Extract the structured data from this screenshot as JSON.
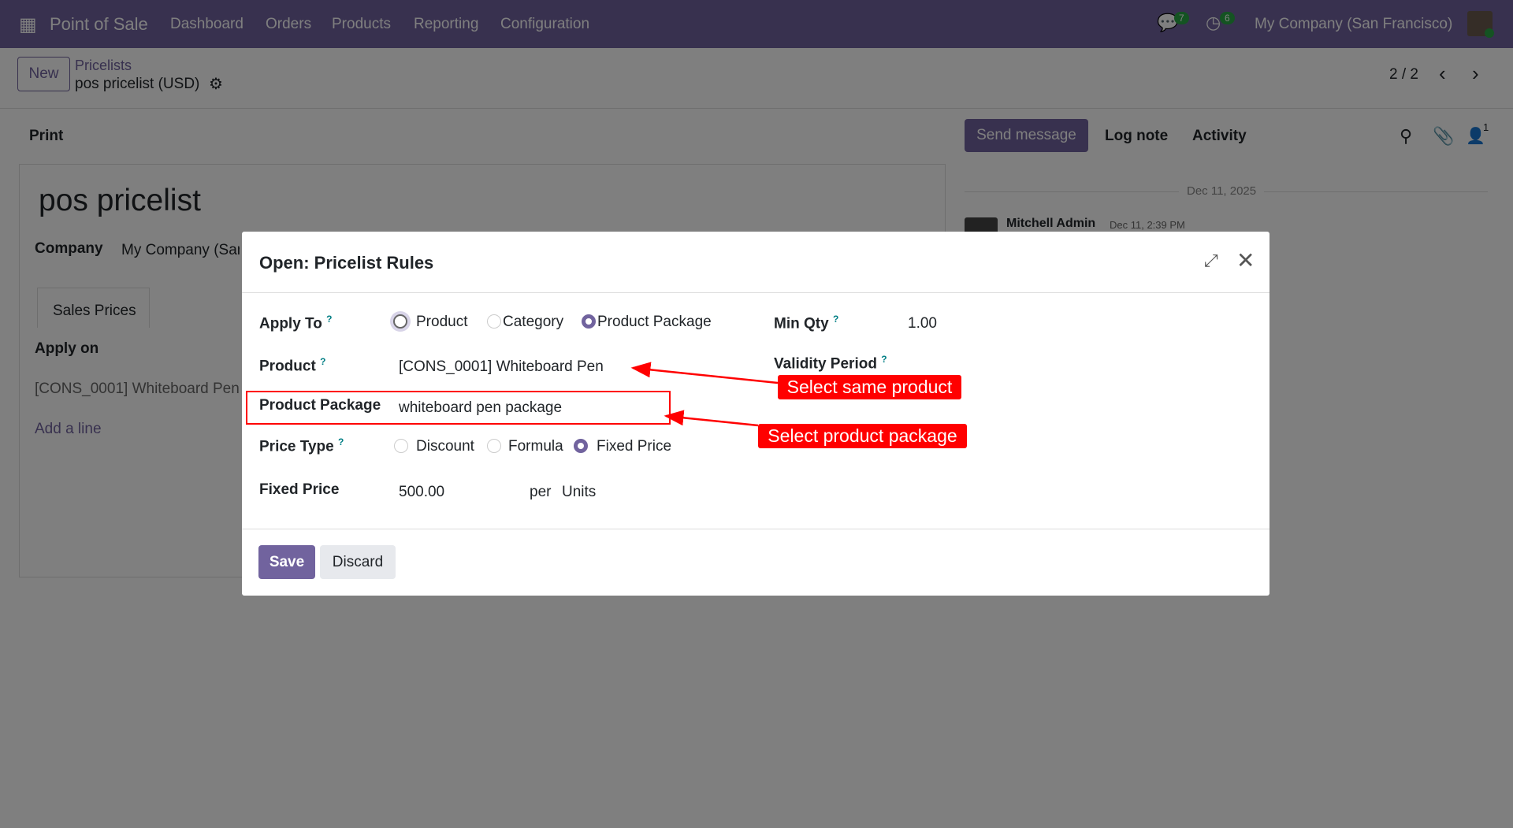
{
  "navbar": {
    "app_name": "Point of Sale",
    "menu": [
      "Dashboard",
      "Orders",
      "Products",
      "Reporting",
      "Configuration"
    ],
    "messages_count": "7",
    "activities_count": "6",
    "company": "My Company (San Francisco)"
  },
  "control": {
    "new_label": "New",
    "breadcrumb_parent": "Pricelists",
    "breadcrumb_current": "pos pricelist (USD)",
    "pager": "2 / 2"
  },
  "toolbar": {
    "print": "Print",
    "send_message": "Send message",
    "log_note": "Log note",
    "activity": "Activity",
    "followers_count": "1"
  },
  "form": {
    "title": "pos pricelist",
    "company_label": "Company",
    "company_value": "My Company (San Francisco)",
    "tab": "Sales Prices",
    "apply_on_header": "Apply on",
    "row": "[CONS_0001] Whiteboard Pen",
    "add_line": "Add a line"
  },
  "chatter": {
    "date": "Dec 11, 2025",
    "author": "Mitchell Admin",
    "time": "Dec 11, 2:39 PM"
  },
  "dialog": {
    "title": "Open: Pricelist Rules",
    "apply_to_label": "Apply To",
    "apply_to_options": [
      "Product",
      "Category",
      "Product Package"
    ],
    "apply_to_selected": "Product Package",
    "product_label": "Product",
    "product_value": "[CONS_0001] Whiteboard Pen",
    "package_label": "Product Package",
    "package_value": "whiteboard pen package",
    "price_type_label": "Price Type",
    "price_type_options": [
      "Discount",
      "Formula",
      "Fixed Price"
    ],
    "price_type_selected": "Fixed Price",
    "fixed_price_label": "Fixed Price",
    "fixed_price_value": "500.00",
    "per": "per",
    "uom": "Units",
    "min_qty_label": "Min Qty",
    "min_qty_value": "1.00",
    "validity_label": "Validity Period",
    "help_mark": "?",
    "save": "Save",
    "discard": "Discard"
  },
  "annotations": {
    "callout_product": "Select same product",
    "callout_package": "Select product package",
    "color": "#ff0000"
  },
  "colors": {
    "brand": "#71639e",
    "badge": "#28a745"
  }
}
